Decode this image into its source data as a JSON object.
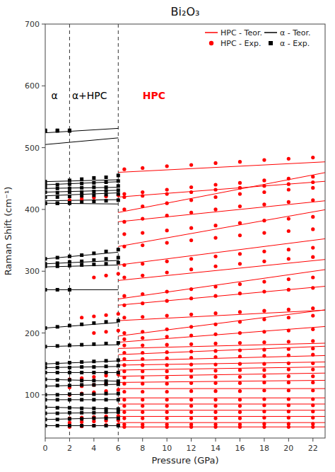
{
  "chart_data": {
    "type": "scatter",
    "title": "Bi₂O₃",
    "x_label": "Pressure (GPa)",
    "y_label": "Raman Shift (cm⁻¹)",
    "xlim": [
      0,
      23
    ],
    "ylim": [
      30,
      700
    ],
    "xticks": [
      0,
      2,
      4,
      6,
      8,
      10,
      12,
      14,
      16,
      18,
      20,
      22
    ],
    "yticks": [
      100,
      200,
      300,
      400,
      500,
      600,
      700
    ],
    "grid": false,
    "legend": "upper right",
    "vlines": [
      2.0,
      6.0
    ],
    "annotations": [
      {
        "text": "α",
        "x": 0.5,
        "y": 590,
        "color": "black"
      },
      {
        "text": "α+HPC",
        "x": 2.2,
        "y": 590,
        "color": "black"
      },
      {
        "text": "HPC",
        "x": 8.0,
        "y": 590,
        "color": "red"
      }
    ],
    "series": [
      {
        "name": "HPC - Teor.",
        "type": "line",
        "color": "red",
        "line_style": "solid",
        "x": [
          6,
          23,
          null,
          6,
          23,
          null,
          6,
          23,
          null,
          6,
          23,
          null,
          6,
          23,
          null,
          6,
          23,
          null,
          6,
          23,
          null,
          6,
          23,
          null,
          6,
          23,
          null,
          6,
          23,
          null,
          6,
          23,
          null,
          6,
          23,
          null,
          6,
          23,
          null,
          6,
          23,
          null,
          6,
          23,
          null,
          6,
          23,
          null,
          6,
          23,
          null,
          6,
          23,
          null,
          6,
          23,
          null,
          6,
          23,
          null,
          6,
          23,
          null,
          6,
          23,
          null,
          6,
          23,
          null,
          6,
          23,
          null,
          6,
          23,
          null,
          6,
          23
        ],
        "values": [
          395,
          459.6,
          null,
          340,
          399.5,
          null,
          310,
          352.5,
          null,
          285,
          319,
          null,
          255,
          302.6,
          null,
          245,
          275.6,
          null,
          220,
          237,
          null,
          195,
          237.5,
          null,
          185,
          210.5,
          null,
          175,
          183.5,
          null,
          165,
          178.6,
          null,
          155,
          163.5,
          null,
          148,
          153.1,
          null,
          140,
          145.1,
          null,
          130,
          135.1,
          null,
          120,
          123.4,
          null,
          110,
          110,
          null,
          95,
          95,
          null,
          85,
          85,
          null,
          75,
          75,
          null,
          65,
          65,
          null,
          55,
          55,
          null,
          460,
          477,
          null,
          420,
          445.5,
          null,
          380,
          414,
          null,
          48,
          48
        ]
      },
      {
        "name": "HPC - Exp.",
        "type": "scatter",
        "color": "red",
        "marker": "circle",
        "x": [
          6.5,
          8,
          10,
          12,
          14,
          16,
          18,
          20,
          22,
          6.5,
          8,
          10,
          12,
          14,
          16,
          18,
          20,
          22,
          6.5,
          8,
          10,
          12,
          14,
          16,
          18,
          20,
          22,
          6.5,
          8,
          10,
          12,
          14,
          16,
          18,
          20,
          22,
          6.5,
          8,
          10,
          12,
          14,
          16,
          18,
          20,
          22,
          6.5,
          8,
          10,
          12,
          14,
          16,
          18,
          20,
          22,
          6.5,
          8,
          10,
          12,
          14,
          16,
          18,
          20,
          22,
          6.5,
          8,
          10,
          12,
          14,
          16,
          18,
          20,
          22,
          6.5,
          8,
          10,
          12,
          14,
          16,
          18,
          20,
          22,
          6.5,
          8,
          10,
          12,
          14,
          16,
          18,
          20,
          22,
          6.5,
          8,
          10,
          12,
          14,
          16,
          18,
          20,
          22,
          6.5,
          8,
          10,
          12,
          14,
          16,
          18,
          20,
          22,
          6.5,
          8,
          10,
          12,
          14,
          16,
          18,
          20,
          22,
          6.5,
          8,
          10,
          12,
          14,
          16,
          18,
          20,
          22,
          6.5,
          8,
          10,
          12,
          14,
          16,
          18,
          20,
          22,
          6.5,
          8,
          10,
          12,
          14,
          16,
          18,
          20,
          22,
          6.5,
          8,
          10,
          12,
          14,
          16,
          18,
          20,
          22,
          6.5,
          8,
          10,
          12,
          14,
          16,
          18,
          20,
          22,
          6.5,
          8,
          10,
          12,
          14,
          16,
          18,
          20,
          22,
          6.5,
          8,
          10,
          12,
          14,
          16,
          18,
          20,
          22,
          6.5,
          8,
          10,
          12,
          14,
          16,
          18,
          20,
          22,
          6.5,
          8,
          10,
          12,
          14,
          16,
          18,
          20,
          22,
          6.5,
          8,
          10,
          12,
          14,
          16,
          18,
          20,
          22,
          6.5,
          8,
          10,
          12,
          14,
          16,
          18,
          20,
          22,
          6.5,
          8,
          10,
          12,
          14,
          16,
          18,
          20,
          22,
          6.5,
          8,
          10,
          12,
          14,
          16,
          18,
          20,
          22,
          6.5,
          8,
          10,
          12,
          14,
          16,
          18,
          20,
          22,
          6.5,
          8,
          10,
          12,
          14,
          16,
          18,
          20,
          22,
          2,
          3,
          4,
          5,
          6,
          4,
          5,
          6,
          3,
          4,
          5,
          6,
          4,
          5,
          6,
          2,
          3,
          4,
          5,
          6,
          2,
          3,
          4,
          5,
          6,
          2,
          3,
          4,
          5,
          6,
          2,
          3,
          4,
          5,
          6,
          2,
          3,
          4,
          5,
          6,
          2,
          3,
          4,
          5,
          6
        ],
        "values": [
          465,
          467,
          470,
          472,
          475,
          477,
          480,
          482,
          484,
          425,
          428,
          432,
          436,
          440,
          443,
          447,
          450,
          453,
          420,
          422,
          425,
          428,
          432,
          435,
          438,
          441,
          444,
          400,
          405,
          410,
          415,
          420,
          425,
          428,
          432,
          435,
          380,
          385,
          390,
          395,
          400,
          405,
          408,
          412,
          415,
          360,
          362,
          366,
          370,
          374,
          378,
          382,
          385,
          388,
          340,
          342,
          346,
          350,
          354,
          358,
          362,
          365,
          368,
          310,
          312,
          316,
          320,
          324,
          328,
          332,
          335,
          338,
          290,
          293,
          298,
          303,
          308,
          312,
          316,
          320,
          323,
          260,
          263,
          267,
          271,
          275,
          279,
          283,
          287,
          290,
          245,
          248,
          252,
          256,
          260,
          264,
          267,
          270,
          273,
          225,
          226,
          228,
          230,
          232,
          234,
          236,
          238,
          240,
          200,
          202,
          206,
          210,
          214,
          218,
          222,
          225,
          228,
          190,
          192,
          194,
          196,
          198,
          200,
          202,
          204,
          206,
          180,
          180,
          181,
          182,
          183,
          184,
          185,
          186,
          187,
          168,
          168,
          169,
          170,
          171,
          172,
          173,
          174,
          175,
          158,
          158,
          159,
          160,
          161,
          162,
          163,
          164,
          165,
          148,
          148,
          148,
          149,
          149,
          150,
          150,
          151,
          151,
          138,
          138,
          138,
          139,
          139,
          140,
          140,
          141,
          141,
          128,
          128,
          128,
          129,
          129,
          129,
          130,
          130,
          130,
          118,
          118,
          118,
          119,
          119,
          119,
          120,
          120,
          120,
          105,
          105,
          105,
          106,
          106,
          106,
          107,
          107,
          107,
          92,
          92,
          92,
          92,
          92,
          92,
          93,
          93,
          93,
          82,
          82,
          82,
          82,
          82,
          82,
          83,
          83,
          83,
          72,
          72,
          72,
          72,
          72,
          72,
          73,
          73,
          73,
          62,
          62,
          62,
          62,
          62,
          62,
          63,
          63,
          63,
          52,
          52,
          52,
          52,
          52,
          52,
          53,
          53,
          53,
          48,
          48,
          48,
          48,
          48,
          48,
          48,
          48,
          48,
          415,
          417,
          419,
          421,
          423,
          290,
          293,
          296,
          225,
          227,
          229,
          231,
          200,
          202,
          204,
          125,
          127,
          129,
          131,
          133,
          112,
          114,
          116,
          118,
          120,
          100,
          102,
          104,
          106,
          108,
          62,
          63,
          64,
          65,
          66,
          55,
          56,
          57,
          58,
          59,
          48,
          49,
          50,
          51,
          52
        ]
      },
      {
        "name": "α - Teor.",
        "type": "line",
        "color": "black",
        "line_style": "solid",
        "x": [
          0,
          6,
          null,
          0,
          6,
          null,
          0,
          6,
          null,
          0,
          6,
          null,
          0,
          6,
          null,
          0,
          6,
          null,
          0,
          6,
          null,
          0,
          6,
          null,
          0,
          6,
          null,
          0,
          6,
          null,
          0,
          6,
          null,
          0,
          6,
          null,
          0,
          6,
          null,
          0,
          6,
          null,
          0,
          6,
          null,
          0,
          6,
          null,
          0,
          6,
          null,
          0,
          6,
          null,
          0,
          6,
          null,
          0,
          6,
          null,
          0,
          6,
          null,
          0,
          6,
          null,
          0,
          6,
          null,
          0,
          6,
          null,
          0,
          6,
          null,
          0,
          6
        ],
        "values": [
          524,
          531.2,
          null,
          505,
          515.8,
          null,
          445,
          448,
          null,
          440,
          444.8,
          null,
          434,
          435.8,
          null,
          428,
          431,
          null,
          422,
          426.8,
          null,
          414,
          415.8,
          null,
          410,
          408.8,
          null,
          320,
          330.8,
          null,
          312,
          317.4,
          null,
          307,
          310,
          null,
          270,
          270,
          null,
          208,
          217,
          null,
          178,
          181,
          null,
          150,
          154.8,
          null,
          144,
          145.8,
          null,
          136,
          136,
          null,
          125,
          122,
          null,
          114,
          117,
          null,
          100,
          101.2,
          null,
          92,
          92,
          null,
          80,
          77,
          null,
          70,
          71.2,
          null,
          60,
          63,
          null,
          50,
          50
        ]
      },
      {
        "name": "α - Exp.",
        "type": "scatter",
        "color": "black",
        "marker": "square",
        "x": [
          0,
          1,
          2,
          0,
          1,
          2,
          0,
          2,
          3,
          4,
          5,
          6,
          0,
          1,
          2,
          3,
          4,
          5,
          6,
          0,
          1,
          2,
          3,
          4,
          5,
          6,
          0,
          1,
          2,
          3,
          4,
          5,
          6,
          0,
          1,
          2,
          3,
          4,
          5,
          6,
          0,
          1,
          2,
          3,
          4,
          5,
          6,
          0,
          1,
          2,
          0,
          1,
          2,
          3,
          4,
          5,
          6,
          0,
          1,
          2,
          3,
          4,
          5,
          6,
          0,
          1,
          2,
          3,
          4,
          5,
          6,
          0,
          1,
          2,
          0,
          1,
          2,
          3,
          4,
          5,
          6,
          0,
          1,
          2,
          3,
          4,
          5,
          6,
          0,
          1,
          2,
          3,
          4,
          5,
          6,
          0,
          1,
          2,
          3,
          4,
          5,
          6,
          0,
          1,
          2,
          3,
          4,
          5,
          6,
          0,
          1,
          2,
          3,
          4,
          5,
          6,
          0,
          1,
          2,
          3,
          4,
          5,
          6,
          0,
          1,
          2,
          3,
          4,
          5,
          6,
          0,
          1,
          2,
          3,
          4,
          5,
          6,
          0,
          1,
          2,
          3,
          4,
          5,
          6,
          0,
          1,
          2,
          3,
          4,
          5,
          6,
          0,
          1,
          2,
          3,
          4,
          5,
          6,
          0,
          1,
          2,
          3,
          4,
          5,
          6
        ],
        "values": [
          528,
          528,
          528,
          527,
          527,
          527,
          445,
          447,
          449,
          451,
          452,
          455,
          440,
          440,
          441,
          442,
          443,
          444,
          446,
          435,
          434,
          434,
          435,
          436,
          436,
          438,
          428,
          427,
          428,
          428,
          429,
          430,
          431,
          420,
          420,
          421,
          422,
          423,
          424,
          425,
          410,
          410,
          411,
          412,
          413,
          414,
          415,
          410,
          410,
          410,
          320,
          322,
          324,
          326,
          329,
          332,
          335,
          312,
          313,
          315,
          316,
          318,
          320,
          322,
          308,
          308,
          309,
          310,
          311,
          312,
          314,
          270,
          270,
          270,
          208,
          210,
          212,
          214,
          216,
          218,
          220,
          178,
          179,
          180,
          181,
          182,
          183,
          184,
          150,
          151,
          152,
          153,
          154,
          155,
          156,
          144,
          144,
          144,
          145,
          145,
          146,
          147,
          136,
          136,
          136,
          136,
          136,
          136,
          136,
          125,
          124,
          124,
          123,
          123,
          122,
          122,
          114,
          115,
          115,
          116,
          116,
          117,
          117,
          100,
          100,
          101,
          101,
          101,
          102,
          102,
          92,
          92,
          92,
          92,
          92,
          92,
          92,
          80,
          79,
          79,
          78,
          78,
          77,
          77,
          70,
          70,
          71,
          71,
          71,
          72,
          72,
          60,
          60,
          61,
          61,
          62,
          62,
          62,
          50,
          50,
          50,
          50,
          50,
          50,
          50
        ]
      }
    ]
  }
}
